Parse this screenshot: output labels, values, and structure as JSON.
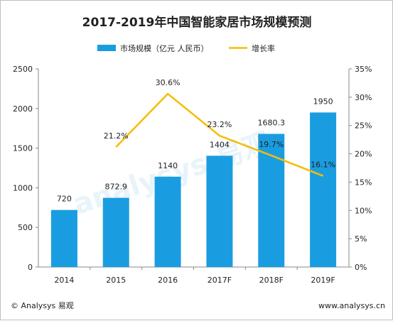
{
  "chart_data": {
    "type": "bar",
    "title": "2017-2019年中国智能家居市场规模预测",
    "categories": [
      "2014",
      "2015",
      "2016",
      "2017F",
      "2018F",
      "2019F"
    ],
    "series": [
      {
        "name": "市场规模（亿元 人民币）",
        "type": "bar",
        "axis": "left",
        "color": "#1a9de0",
        "values": [
          720,
          872.9,
          1140,
          1404,
          1680.3,
          1950
        ],
        "labels": [
          "720",
          "872.9",
          "1140",
          "1404",
          "1680.3",
          "1950"
        ]
      },
      {
        "name": "增长率",
        "type": "line",
        "axis": "right",
        "color": "#f5bd00",
        "values": [
          null,
          21.2,
          30.6,
          23.2,
          19.7,
          16.1
        ],
        "labels": [
          "",
          "21.2%",
          "30.6%",
          "23.2%",
          "19.7%",
          "16.1%"
        ]
      }
    ],
    "y_left": {
      "min": 0,
      "max": 2500,
      "ticks": [
        "0",
        "500",
        "1000",
        "1500",
        "2000",
        "2500"
      ]
    },
    "y_right": {
      "min": 0,
      "max": 35,
      "ticks": [
        "0%",
        "5%",
        "10%",
        "15%",
        "20%",
        "25%",
        "30%",
        "35%"
      ]
    },
    "grid": false,
    "legend": "top-center"
  },
  "watermark": "analysys 易观",
  "footer": {
    "left": "© Analysys 易观",
    "right": "www.analysys.cn"
  }
}
